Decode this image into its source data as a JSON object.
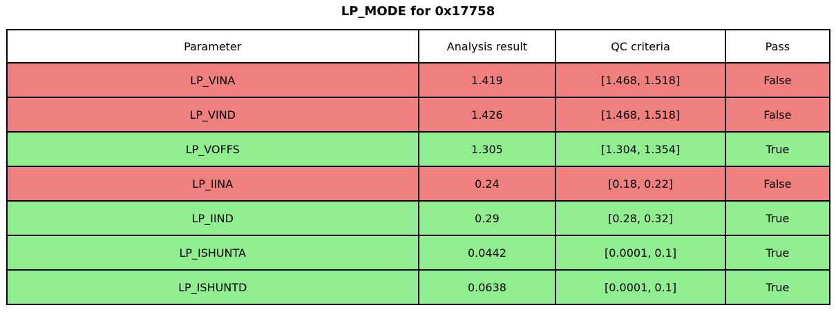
{
  "title": "LP_MODE for 0x17758",
  "colors": {
    "pass": "#90EE90",
    "fail": "#F08080",
    "header_bg": "#FFFFFF",
    "border": "#000000",
    "text": "#000000"
  },
  "table": {
    "headers": {
      "parameter": "Parameter",
      "result": "Analysis result",
      "criteria": "QC criteria",
      "pass": "Pass"
    },
    "rows": [
      {
        "parameter": "LP_VINA",
        "result": "1.419",
        "criteria": "[1.468, 1.518]",
        "pass": "False",
        "status": "fail"
      },
      {
        "parameter": "LP_VIND",
        "result": "1.426",
        "criteria": "[1.468, 1.518]",
        "pass": "False",
        "status": "fail"
      },
      {
        "parameter": "LP_VOFFS",
        "result": "1.305",
        "criteria": "[1.304, 1.354]",
        "pass": "True",
        "status": "pass"
      },
      {
        "parameter": "LP_IINA",
        "result": "0.24",
        "criteria": "[0.18, 0.22]",
        "pass": "False",
        "status": "fail"
      },
      {
        "parameter": "LP_IIND",
        "result": "0.29",
        "criteria": "[0.28, 0.32]",
        "pass": "True",
        "status": "pass"
      },
      {
        "parameter": "LP_ISHUNTA",
        "result": "0.0442",
        "criteria": "[0.0001, 0.1]",
        "pass": "True",
        "status": "pass"
      },
      {
        "parameter": "LP_ISHUNTD",
        "result": "0.0638",
        "criteria": "[0.0001, 0.1]",
        "pass": "True",
        "status": "pass"
      }
    ]
  },
  "chart_data": {
    "type": "table",
    "title": "LP_MODE for 0x17758",
    "columns": [
      "Parameter",
      "Analysis result",
      "QC criteria",
      "Pass"
    ],
    "rows": [
      [
        "LP_VINA",
        1.419,
        "[1.468, 1.518]",
        "False"
      ],
      [
        "LP_VIND",
        1.426,
        "[1.468, 1.518]",
        "False"
      ],
      [
        "LP_VOFFS",
        1.305,
        "[1.304, 1.354]",
        "True"
      ],
      [
        "LP_IINA",
        0.24,
        "[0.18, 0.22]",
        "False"
      ],
      [
        "LP_IIND",
        0.29,
        "[0.28, 0.32]",
        "True"
      ],
      [
        "LP_ISHUNTA",
        0.0442,
        "[0.0001, 0.1]",
        "True"
      ],
      [
        "LP_ISHUNTD",
        0.0638,
        "[0.0001, 0.1]",
        "True"
      ]
    ],
    "row_status": [
      "fail",
      "fail",
      "pass",
      "fail",
      "pass",
      "pass",
      "pass"
    ],
    "status_colors": {
      "pass": "#90EE90",
      "fail": "#F08080"
    },
    "layout": {
      "header_background": "#FFFFFF",
      "border_color": "#000000",
      "column_width_pct": [
        50,
        16.7,
        20.6,
        12.7
      ]
    }
  }
}
